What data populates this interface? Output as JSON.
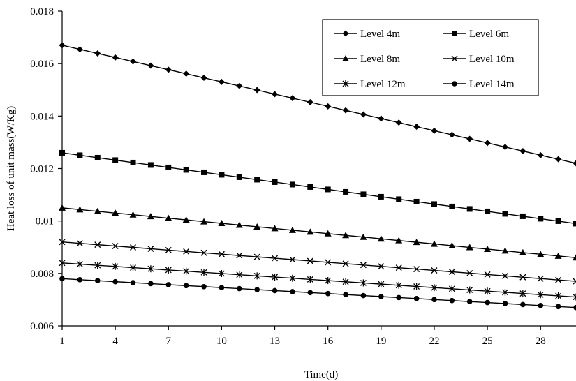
{
  "chart_data": {
    "type": "line",
    "title": "",
    "xlabel": "Time(d)",
    "ylabel": "Heat loss of unit mass(W/Kg)",
    "xlim": [
      1,
      30
    ],
    "ylim": [
      0.006,
      0.018
    ],
    "x_ticks": [
      1,
      4,
      7,
      10,
      13,
      16,
      19,
      22,
      25,
      28
    ],
    "x_tick_labels": [
      "1",
      "4",
      "7",
      "10",
      "13",
      "16",
      "19",
      "22",
      "25",
      "28"
    ],
    "y_ticks": [
      0.006,
      0.008,
      0.01,
      0.012,
      0.014,
      0.016,
      0.018
    ],
    "y_tick_labels": [
      "0.006",
      "0.008",
      "0.01",
      "0.012",
      "0.014",
      "0.016",
      "0.018"
    ],
    "grid": false,
    "legend_position": "top-right",
    "x": [
      1,
      2,
      3,
      4,
      5,
      6,
      7,
      8,
      9,
      10,
      11,
      12,
      13,
      14,
      15,
      16,
      17,
      18,
      19,
      20,
      21,
      22,
      23,
      24,
      25,
      26,
      27,
      28,
      29,
      30
    ],
    "series": [
      {
        "name": "Level 4m",
        "marker": "diamond",
        "start": 0.0167,
        "end": 0.0122
      },
      {
        "name": "Level 6m",
        "marker": "square",
        "start": 0.0126,
        "end": 0.0099
      },
      {
        "name": "Level 8m",
        "marker": "triangle",
        "start": 0.0105,
        "end": 0.0086
      },
      {
        "name": "Level 10m",
        "marker": "x",
        "start": 0.0092,
        "end": 0.0077
      },
      {
        "name": "Level 12m",
        "marker": "star",
        "start": 0.0084,
        "end": 0.0071
      },
      {
        "name": "Level 14m",
        "marker": "circle",
        "start": 0.0078,
        "end": 0.0067
      }
    ]
  }
}
